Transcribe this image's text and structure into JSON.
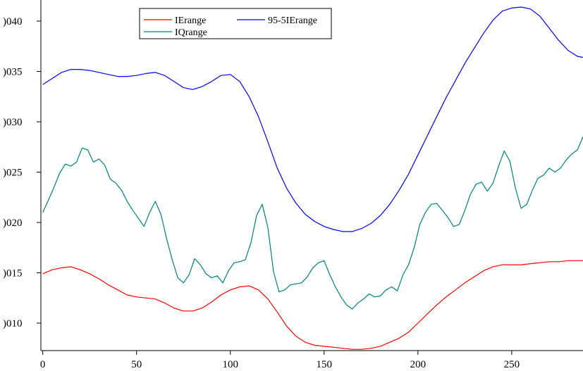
{
  "chart_data": {
    "type": "line",
    "title": "",
    "xlabel": "",
    "ylabel": "",
    "xlim": [
      -1,
      288
    ],
    "ylim": [
      0.00066,
      0.00044
    ],
    "xticks": [
      0,
      50,
      100,
      150,
      200,
      250
    ],
    "yticks": [
      0.0001,
      0.00015,
      0.0002,
      0.00025,
      0.0003,
      0.00035,
      0.0004
    ],
    "xtick_labels": [
      "0",
      "50",
      "100",
      "150",
      "200",
      "250"
    ],
    "ytick_labels": [
      ")010",
      ")015",
      ")020",
      ")025",
      ")030",
      ")035",
      ")040"
    ],
    "grid": false,
    "legend_position": "top-center",
    "series": [
      {
        "name": "IErange",
        "color": "#ff0000",
        "x": [
          0,
          5,
          10,
          15,
          20,
          25,
          30,
          35,
          40,
          45,
          50,
          55,
          60,
          65,
          70,
          75,
          80,
          85,
          90,
          95,
          100,
          105,
          110,
          115,
          120,
          125,
          130,
          135,
          140,
          145,
          150,
          155,
          160,
          165,
          170,
          175,
          180,
          185,
          190,
          195,
          200,
          205,
          210,
          215,
          220,
          225,
          230,
          235,
          240,
          245,
          250,
          255,
          260,
          265,
          270,
          275,
          280,
          285,
          288
        ],
        "y": [
          0.000149,
          0.000153,
          0.000155,
          0.000156,
          0.000153,
          0.000149,
          0.000144,
          0.000138,
          0.000133,
          0.000128,
          0.000126,
          0.000125,
          0.000124,
          0.00012,
          0.000115,
          0.000112,
          0.000112,
          0.000115,
          0.000121,
          0.000128,
          0.000133,
          0.000136,
          0.000137,
          0.000133,
          0.000124,
          0.000111,
          9.7e-05,
          8.7e-05,
          8.1e-05,
          7.8e-05,
          7.7e-05,
          7.6e-05,
          7.5e-05,
          7.4e-05,
          7.4e-05,
          7.5e-05,
          7.7e-05,
          8.1e-05,
          8.5e-05,
          9.1e-05,
          0.0001,
          0.000109,
          0.000118,
          0.000126,
          0.000133,
          0.00014,
          0.000146,
          0.000152,
          0.000156,
          0.000158,
          0.000158,
          0.000158,
          0.000159,
          0.00016,
          0.000161,
          0.000161,
          0.000162,
          0.000162,
          0.000162
        ]
      },
      {
        "name": "95-5IErange",
        "color": "#0000ff",
        "x": [
          0,
          5,
          10,
          15,
          20,
          25,
          30,
          35,
          40,
          45,
          50,
          55,
          60,
          65,
          70,
          75,
          80,
          85,
          90,
          95,
          100,
          105,
          110,
          115,
          120,
          125,
          130,
          135,
          140,
          145,
          150,
          155,
          160,
          165,
          170,
          175,
          180,
          185,
          190,
          195,
          200,
          205,
          210,
          215,
          220,
          225,
          230,
          235,
          240,
          245,
          250,
          255,
          260,
          265,
          270,
          275,
          280,
          285,
          288
        ],
        "y": [
          0.000337,
          0.000343,
          0.000349,
          0.000352,
          0.000352,
          0.000351,
          0.000349,
          0.000347,
          0.000345,
          0.000345,
          0.000346,
          0.000348,
          0.000349,
          0.000346,
          0.00034,
          0.000334,
          0.000332,
          0.000335,
          0.00034,
          0.000346,
          0.000347,
          0.00034,
          0.000325,
          0.000305,
          0.00028,
          0.000254,
          0.000234,
          0.000219,
          0.000208,
          0.000201,
          0.000196,
          0.000193,
          0.000191,
          0.000191,
          0.000194,
          0.000199,
          0.000207,
          0.000218,
          0.000232,
          0.000248,
          0.000267,
          0.000286,
          0.000305,
          0.000324,
          0.000341,
          0.000358,
          0.000373,
          0.000388,
          0.000401,
          0.00041,
          0.000413,
          0.000414,
          0.000412,
          0.000405,
          0.000393,
          0.000381,
          0.000371,
          0.000365,
          0.000364
        ]
      },
      {
        "name": "IQrange",
        "color": "#008080",
        "x": [
          0,
          3,
          6,
          9,
          12,
          15,
          18,
          21,
          24,
          27,
          30,
          33,
          36,
          39,
          42,
          45,
          48,
          51,
          54,
          57,
          60,
          63,
          66,
          69,
          72,
          75,
          78,
          81,
          84,
          87,
          90,
          93,
          96,
          99,
          102,
          105,
          108,
          111,
          114,
          117,
          120,
          123,
          126,
          129,
          132,
          135,
          138,
          141,
          144,
          147,
          150,
          153,
          156,
          159,
          162,
          165,
          168,
          171,
          174,
          177,
          180,
          183,
          186,
          189,
          192,
          195,
          198,
          201,
          204,
          207,
          210,
          213,
          216,
          219,
          222,
          225,
          228,
          231,
          234,
          237,
          240,
          243,
          246,
          249,
          252,
          255,
          258,
          261,
          264,
          267,
          270,
          273,
          276,
          279,
          282,
          285,
          288
        ],
        "y": [
          0.00021,
          0.000222,
          0.000235,
          0.000249,
          0.000258,
          0.000256,
          0.00026,
          0.000274,
          0.000272,
          0.00026,
          0.000263,
          0.000257,
          0.000243,
          0.000239,
          0.000232,
          0.000221,
          0.000212,
          0.000204,
          0.000196,
          0.00021,
          0.000221,
          0.000208,
          0.000184,
          0.000163,
          0.000145,
          0.00014,
          0.000148,
          0.000164,
          0.000158,
          0.000149,
          0.000145,
          0.000147,
          0.00014,
          0.000152,
          0.00016,
          0.000161,
          0.000163,
          0.00018,
          0.000207,
          0.000218,
          0.000195,
          0.000151,
          0.000131,
          0.000133,
          0.000138,
          0.000139,
          0.00014,
          0.000146,
          0.000155,
          0.00016,
          0.000162,
          0.000148,
          0.000136,
          0.000126,
          0.000118,
          0.000114,
          0.00012,
          0.000124,
          0.000129,
          0.000126,
          0.000127,
          0.000133,
          0.000136,
          0.000132,
          0.000148,
          0.000158,
          0.000175,
          0.000198,
          0.00021,
          0.000218,
          0.000219,
          0.000212,
          0.000205,
          0.000196,
          0.000198,
          0.000212,
          0.000228,
          0.000238,
          0.00024,
          0.000231,
          0.000239,
          0.000256,
          0.000271,
          0.000261,
          0.000234,
          0.000214,
          0.000218,
          0.000232,
          0.000244,
          0.000247,
          0.000254,
          0.00025,
          0.000254,
          0.000262,
          0.000268,
          0.000272,
          0.000285
        ]
      }
    ]
  }
}
